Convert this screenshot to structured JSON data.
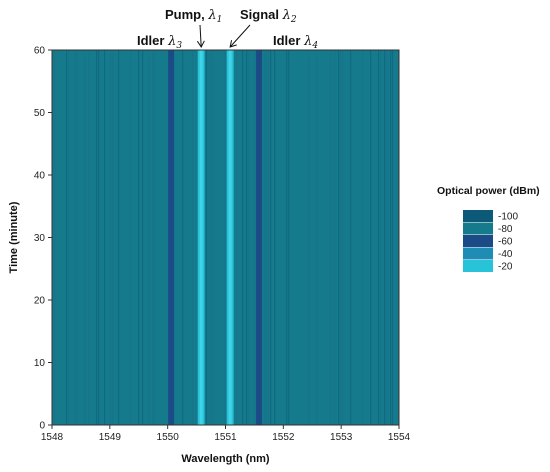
{
  "chart_data": {
    "type": "heatmap",
    "title": "",
    "xlabel": "Wavelength (nm)",
    "ylabel": "Time (minute)",
    "xlim": [
      1548,
      1554
    ],
    "ylim": [
      0,
      60
    ],
    "x_ticks": [
      "1548",
      "1549",
      "1550",
      "1551",
      "1552",
      "1553",
      "1554"
    ],
    "y_ticks": [
      "0",
      "10",
      "20",
      "30",
      "40",
      "50",
      "60"
    ],
    "grid": false,
    "colorbar": {
      "title": "Optical power (dBm)",
      "levels": [
        -100,
        -80,
        -60,
        -40,
        -20
      ],
      "labels": [
        "-100",
        "-80",
        "-60",
        "-40",
        "-20"
      ],
      "colors": [
        "#0d5a78",
        "#157a8c",
        "#1c4a86",
        "#1f8cb6",
        "#29c3d9"
      ],
      "placement": "right"
    },
    "background_power_dbm": -80,
    "spectral_lines": [
      {
        "name": "Idler",
        "symbol": "λ",
        "subscript": "3",
        "wavelength_nm": 1550.06,
        "width_nm": 0.1,
        "power_dbm": -60
      },
      {
        "name": "Pump",
        "symbol": "λ",
        "subscript": "1",
        "wavelength_nm": 1550.58,
        "width_nm": 0.12,
        "power_dbm": -20
      },
      {
        "name": "Signal",
        "symbol": "λ",
        "subscript": "2",
        "wavelength_nm": 1551.08,
        "width_nm": 0.12,
        "power_dbm": -20
      },
      {
        "name": "Idler",
        "symbol": "λ",
        "subscript": "4",
        "wavelength_nm": 1551.58,
        "width_nm": 0.1,
        "power_dbm": -60
      }
    ],
    "annotations": [
      {
        "text": "Idler",
        "symbol": "λ",
        "subscript": "3",
        "arrow": false,
        "target_nm": 1550.06
      },
      {
        "text": "Pump,",
        "symbol": "λ",
        "subscript": "1",
        "arrow": true,
        "target_nm": 1550.58
      },
      {
        "text": "Signal",
        "symbol": "λ",
        "subscript": "2",
        "arrow": true,
        "target_nm": 1551.08
      },
      {
        "text": "Idler",
        "symbol": "λ",
        "subscript": "4",
        "arrow": false,
        "target_nm": 1551.58
      }
    ]
  }
}
